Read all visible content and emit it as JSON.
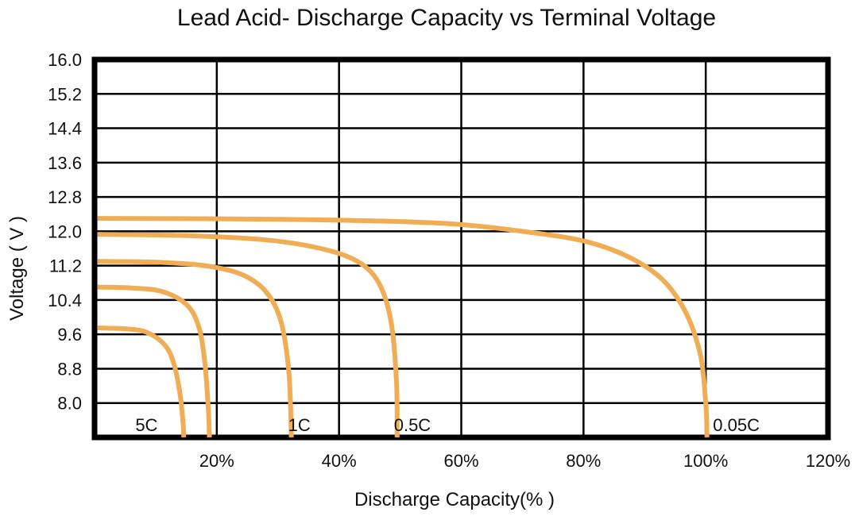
{
  "chart_data": {
    "type": "line",
    "title": "Lead Acid- Discharge Capacity vs Terminal Voltage",
    "xlabel": "Discharge Capacity(% )",
    "ylabel": "Voltage ( V )",
    "xlim": [
      0,
      120
    ],
    "ylim": [
      7.2,
      16.0
    ],
    "x_tick_labels": [
      "20%",
      "40%",
      "60%",
      "80%",
      "100%",
      "120%"
    ],
    "x_tick_values": [
      20,
      40,
      60,
      80,
      100,
      120
    ],
    "y_tick_labels": [
      "16.0",
      "15.2",
      "14.4",
      "13.6",
      "12.8",
      "12.0",
      "11.2",
      "10.4",
      "9.6",
      "8.8",
      "8.0"
    ],
    "y_tick_values": [
      16.0,
      15.2,
      14.4,
      13.6,
      12.8,
      12.0,
      11.2,
      10.4,
      9.6,
      8.8,
      8.0
    ],
    "grid": true,
    "line_color": "#f0ad55",
    "series": [
      {
        "name": "5C",
        "label_pos": [
          8.5,
          7.5
        ],
        "x": [
          0.5,
          5,
          8.5,
          11.5,
          13,
          14,
          14.5,
          14.6
        ],
        "y": [
          9.75,
          9.73,
          9.65,
          9.35,
          8.9,
          8.2,
          7.5,
          7.2
        ]
      },
      {
        "name": "",
        "label_pos": null,
        "x": [
          0.5,
          6,
          11,
          15,
          17,
          18,
          18.6,
          18.8
        ],
        "y": [
          10.7,
          10.68,
          10.6,
          10.3,
          9.8,
          9.0,
          7.9,
          7.2
        ]
      },
      {
        "name": "1C",
        "label_pos": [
          33.5,
          7.5
        ],
        "x": [
          0.5,
          10,
          18,
          24,
          28,
          30.5,
          31.8,
          32.2
        ],
        "y": [
          11.3,
          11.28,
          11.2,
          11.0,
          10.6,
          9.9,
          8.7,
          7.2
        ]
      },
      {
        "name": "0.5C",
        "label_pos": [
          52,
          7.5
        ],
        "x": [
          0.5,
          15,
          28,
          37,
          43,
          46.5,
          48.5,
          49.4,
          49.5
        ],
        "y": [
          11.93,
          11.9,
          11.8,
          11.6,
          11.3,
          10.8,
          9.9,
          8.5,
          7.2
        ]
      },
      {
        "name": "0.05C",
        "label_pos": [
          105,
          7.5
        ],
        "x": [
          0.5,
          30,
          55,
          70,
          82,
          91,
          96,
          99,
          100,
          100.2
        ],
        "y": [
          12.3,
          12.28,
          12.2,
          12.0,
          11.7,
          11.1,
          10.3,
          9.2,
          8.0,
          7.2
        ]
      }
    ]
  }
}
